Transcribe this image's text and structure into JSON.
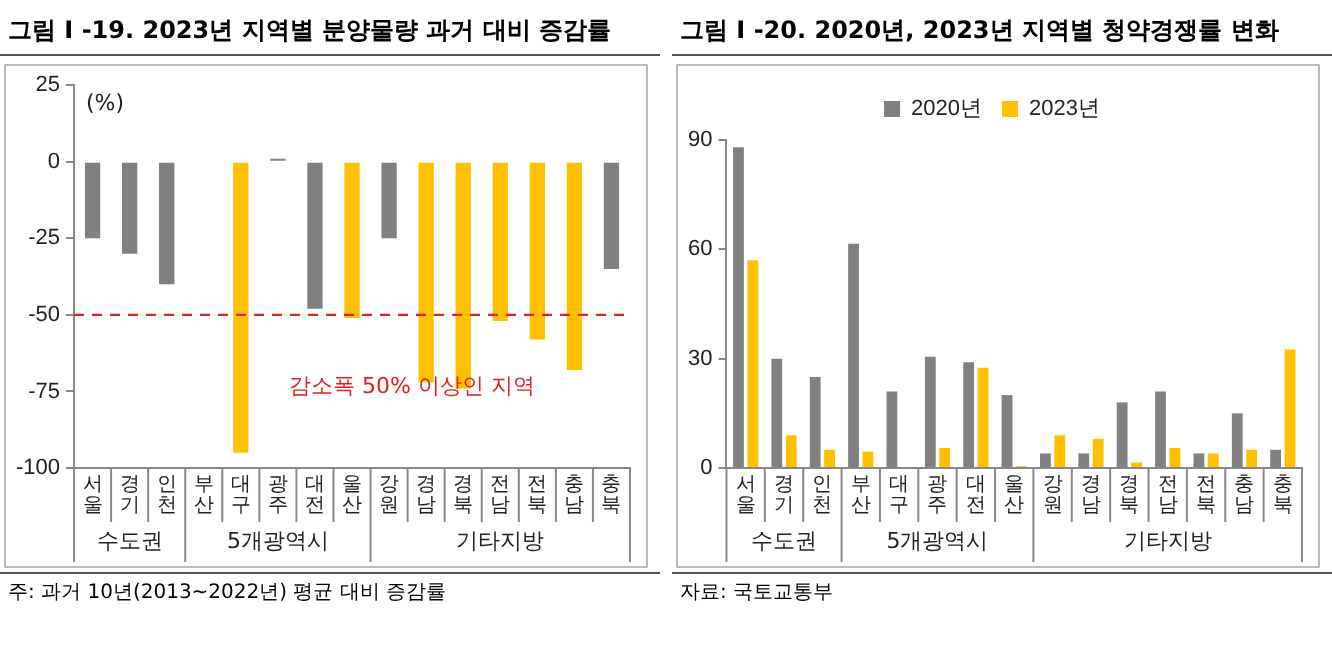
{
  "chart_data": [
    {
      "type": "bar",
      "title": "그림 I -19. 2023년 지역별 분양물량 과거 대비 증감률",
      "ylabel": "(%)",
      "categories": [
        "서울",
        "경기",
        "인천",
        "부산",
        "대구",
        "광주",
        "대전",
        "울산",
        "강원",
        "경남",
        "경북",
        "전남",
        "전북",
        "충남",
        "충북"
      ],
      "values": [
        -25,
        -30,
        -40,
        0,
        -95,
        1,
        -48,
        -51,
        -25,
        -72,
        -74,
        -52,
        -58,
        -68,
        -35
      ],
      "colors": [
        "#808080",
        "#808080",
        "#808080",
        "#808080",
        "#ffc000",
        "#808080",
        "#808080",
        "#ffc000",
        "#808080",
        "#ffc000",
        "#ffc000",
        "#ffc000",
        "#ffc000",
        "#ffc000",
        "#808080"
      ],
      "ylim": [
        -100,
        25
      ],
      "yticks": [
        -100,
        -75,
        -50,
        -25,
        0,
        25
      ],
      "grid": false,
      "legend": false,
      "ref_lines": [
        {
          "axis": "y",
          "value": -50,
          "label": "감소폭 50% 이상인 지역",
          "color": "#e02020",
          "line_style": "dashed"
        }
      ],
      "annotations": [
        "수도권",
        "5개광역시",
        "기타지방",
        "주: 과거 10년(2013~2022년) 평균 대비 증감률"
      ]
    },
    {
      "type": "bar",
      "title": "그림 I -20. 2020년, 2023년 지역별 청약경쟁률 변화",
      "categories": [
        "서울",
        "경기",
        "인천",
        "부산",
        "대구",
        "광주",
        "대전",
        "울산",
        "강원",
        "경남",
        "경북",
        "전남",
        "전북",
        "충남",
        "충북"
      ],
      "series": [
        {
          "name": "2020년",
          "color": "#808080",
          "values": [
            88,
            30,
            25,
            61.5,
            21,
            30.5,
            29,
            20,
            4,
            4,
            18,
            21,
            4,
            15,
            5
          ]
        },
        {
          "name": "2023년",
          "color": "#ffc000",
          "values": [
            57,
            9,
            5,
            4.5,
            0,
            5.5,
            27.5,
            0.5,
            9,
            8,
            1.5,
            5.5,
            4,
            5,
            32.5
          ]
        }
      ],
      "ylim": [
        0,
        90
      ],
      "yticks": [
        0,
        30,
        60,
        90
      ],
      "grid": false,
      "legend": "top",
      "annotations": [
        "수도권",
        "5개광역시",
        "기타지방",
        "자료: 국토교통부"
      ]
    }
  ]
}
